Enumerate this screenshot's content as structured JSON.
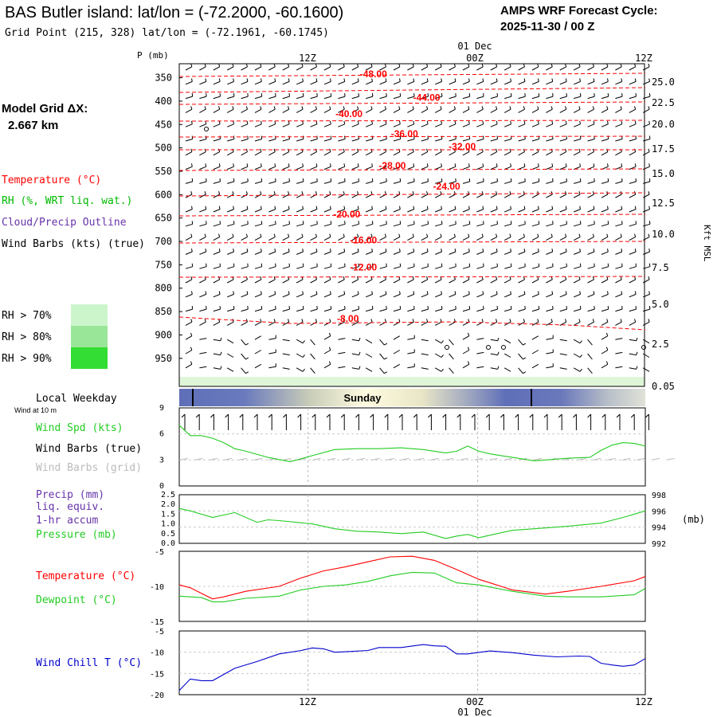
{
  "header": {
    "title": "BAS Butler island:  lat/lon = (-72.2000, -60.1600)",
    "subtitle": "Grid Point (215, 328) lat/lon = (-72.1961, -60.1745)",
    "cycle_label": "AMPS WRF Forecast Cycle:",
    "cycle_value": "2025-11-30 / 00  Z"
  },
  "time_axis": {
    "ticks": [
      "12Z",
      "00Z",
      "12Z"
    ],
    "top_ticks_y": "12Z",
    "date_label": "01 Dec",
    "weekday_label": "Local Weekday",
    "weekday_value": "Sunday"
  },
  "left_labels": {
    "model_grid": "Model Grid ΔX:",
    "model_grid_value": "2.667 km",
    "temperature": "Temperature (°C)",
    "rh": "RH (%, WRT liq. wat.)",
    "cloud": "Cloud/Precip Outline",
    "wind_barbs": "Wind Barbs (kts) (true)",
    "rh70": "RH > 70%",
    "rh80": "RH > 80%",
    "rh90": "RH > 90%",
    "wind_10m": "Wind at 10 m",
    "wind_spd": "Wind Spd (kts)",
    "wind_barbs_true": "Wind Barbs (true)",
    "wind_barbs_grid": "Wind Barbs (grid)",
    "precip": "Precip (mm)",
    "liq_equiv": "liq. equiv.",
    "accum": "1-hr accum",
    "pressure": "Pressure (mb)",
    "temp2": "Temperature (°C)",
    "dewpoint": "Dewpoint (°C)",
    "windchill": "Wind Chill T (°C)"
  },
  "colors": {
    "temperature": "#ff0000",
    "rh": "#00bb00",
    "cloud": "#6633aa",
    "wind_speed": "#22cc22",
    "grid_barbs": "#bbbbbb",
    "windchill": "#0000cc",
    "rh70": "#ccf5cc",
    "rh80": "#99e699",
    "rh90": "#33dd33",
    "day_bar_dark": "#5f6fb8",
    "day_bar_light": "#fffbe0"
  },
  "chart_data": [
    {
      "type": "line",
      "panel": "upper-air cross section",
      "ylabel": "P (mb)",
      "yticks": [
        "350",
        "400",
        "450",
        "500",
        "550",
        "600",
        "650",
        "700",
        "750",
        "800",
        "850",
        "900",
        "950"
      ],
      "right_label": "Kft MSL",
      "right_ticks": [
        "25.0",
        "22.5",
        "20.0",
        "17.5",
        "15.0",
        "12.5",
        "10.0",
        "7.5",
        "5.0",
        "2.5",
        "0.05"
      ],
      "x_range_hours": [
        0,
        42
      ],
      "isotherm_labels": [
        {
          "text": "-48.00",
          "hour": 17.5,
          "p": 342
        },
        {
          "text": "-44.00",
          "hour": 22.3,
          "p": 392
        },
        {
          "text": "-40.00",
          "hour": 15.3,
          "p": 427
        },
        {
          "text": "-36.00",
          "hour": 20.3,
          "p": 470
        },
        {
          "text": "-32.00",
          "hour": 25.5,
          "p": 497
        },
        {
          "text": "-28.00",
          "hour": 19.2,
          "p": 538
        },
        {
          "text": "-24.00",
          "hour": 24.1,
          "p": 582
        },
        {
          "text": "-20.00",
          "hour": 15.1,
          "p": 642
        },
        {
          "text": "-16.00",
          "hour": 16.6,
          "p": 697
        },
        {
          "text": "-12.00",
          "hour": 16.6,
          "p": 755
        },
        {
          "text": "-8.00",
          "hour": 15.2,
          "p": 865
        }
      ]
    },
    {
      "type": "line",
      "panel": "10 m wind speed",
      "series": [
        {
          "name": "Wind Spd (kts)",
          "hours": [
            0,
            1,
            2,
            3,
            4,
            5,
            6,
            8,
            10,
            12,
            14,
            16,
            18,
            20,
            22,
            24,
            25,
            26,
            27,
            28,
            30,
            32,
            35,
            37,
            38,
            39,
            40,
            41,
            42
          ],
          "values": [
            7.0,
            5.8,
            5.8,
            5.5,
            5.0,
            4.3,
            4.0,
            3.3,
            2.8,
            3.5,
            4.2,
            4.3,
            4.3,
            4.4,
            4.2,
            3.8,
            4.0,
            4.6,
            4.0,
            3.7,
            3.3,
            2.9,
            3.2,
            3.3,
            4.1,
            4.7,
            5.0,
            4.9,
            4.6
          ]
        }
      ],
      "ylim": [
        0,
        9
      ],
      "yticks": [
        "9",
        "6",
        "3",
        "0"
      ]
    },
    {
      "type": "line",
      "panel": "precip and pressure",
      "left_ylim": [
        0,
        2.5
      ],
      "left_yticks": [
        "2.5",
        "2.0",
        "1.5",
        "1.0",
        "0.5",
        "0.0"
      ],
      "right_ylim": [
        992,
        998
      ],
      "right_yticks": [
        "998",
        "996",
        "994",
        "992"
      ],
      "right_unit": "(mb)",
      "series": [
        {
          "name": "Pressure (mb)",
          "hours": [
            0,
            1,
            3,
            5,
            7,
            8,
            9,
            12,
            14,
            16,
            18,
            20,
            22,
            24,
            25,
            26,
            27,
            28,
            30,
            32,
            35,
            38,
            40,
            42
          ],
          "values": [
            996.3,
            996.0,
            995.2,
            995.8,
            994.6,
            994.9,
            994.8,
            994.4,
            993.8,
            993.5,
            993.4,
            993.2,
            993.4,
            992.6,
            992.9,
            993.1,
            992.7,
            993.0,
            993.6,
            993.8,
            994.1,
            994.5,
            995.2,
            996.0
          ]
        }
      ]
    },
    {
      "type": "line",
      "panel": "temperature and dewpoint",
      "ylim": [
        -15,
        -5
      ],
      "yticks": [
        "-5",
        "-10",
        "-15"
      ],
      "series": [
        {
          "name": "Temperature (°C)",
          "hours": [
            0,
            1,
            3,
            4,
            6,
            9,
            11,
            13,
            15,
            17,
            19,
            21,
            23,
            25,
            27,
            30,
            33,
            35,
            38,
            41,
            42
          ],
          "values": [
            -9.8,
            -10.2,
            -11.8,
            -11.5,
            -10.7,
            -10.0,
            -8.8,
            -7.8,
            -7.2,
            -6.5,
            -5.8,
            -5.7,
            -6.3,
            -7.6,
            -9.0,
            -10.5,
            -11.1,
            -10.7,
            -10.0,
            -9.2,
            -8.6
          ]
        },
        {
          "name": "Dewpoint (°C)",
          "hours": [
            0,
            2,
            3,
            4,
            6,
            9,
            11,
            13,
            15,
            17,
            19,
            21,
            23,
            25,
            27,
            30,
            33,
            35,
            38,
            41,
            42
          ],
          "values": [
            -11.4,
            -11.6,
            -12.2,
            -12.2,
            -11.7,
            -11.4,
            -10.5,
            -10.0,
            -9.8,
            -9.3,
            -8.5,
            -8.0,
            -8.1,
            -9.5,
            -9.8,
            -10.7,
            -11.4,
            -11.5,
            -11.5,
            -11.2,
            -10.3
          ]
        }
      ]
    },
    {
      "type": "line",
      "panel": "wind chill",
      "ylim": [
        -20,
        -5
      ],
      "yticks": [
        "-5",
        "-10",
        "-15",
        "-20"
      ],
      "series": [
        {
          "name": "Wind Chill T (°C)",
          "hours": [
            0,
            1,
            2,
            3,
            5,
            7,
            9,
            11,
            12,
            13,
            14,
            15,
            17,
            18,
            20,
            22,
            23,
            24,
            25,
            26,
            28,
            30,
            32,
            34,
            36,
            37,
            38,
            39,
            40,
            41,
            42
          ],
          "values": [
            -19.0,
            -16.3,
            -16.7,
            -16.7,
            -13.8,
            -12.2,
            -10.4,
            -9.6,
            -9.0,
            -9.2,
            -10.0,
            -9.9,
            -9.6,
            -8.9,
            -8.9,
            -8.2,
            -8.5,
            -8.6,
            -10.4,
            -10.4,
            -9.7,
            -10.1,
            -10.7,
            -11.1,
            -10.9,
            -11.0,
            -12.6,
            -13.0,
            -13.3,
            -13.0,
            -11.5
          ]
        }
      ]
    }
  ]
}
